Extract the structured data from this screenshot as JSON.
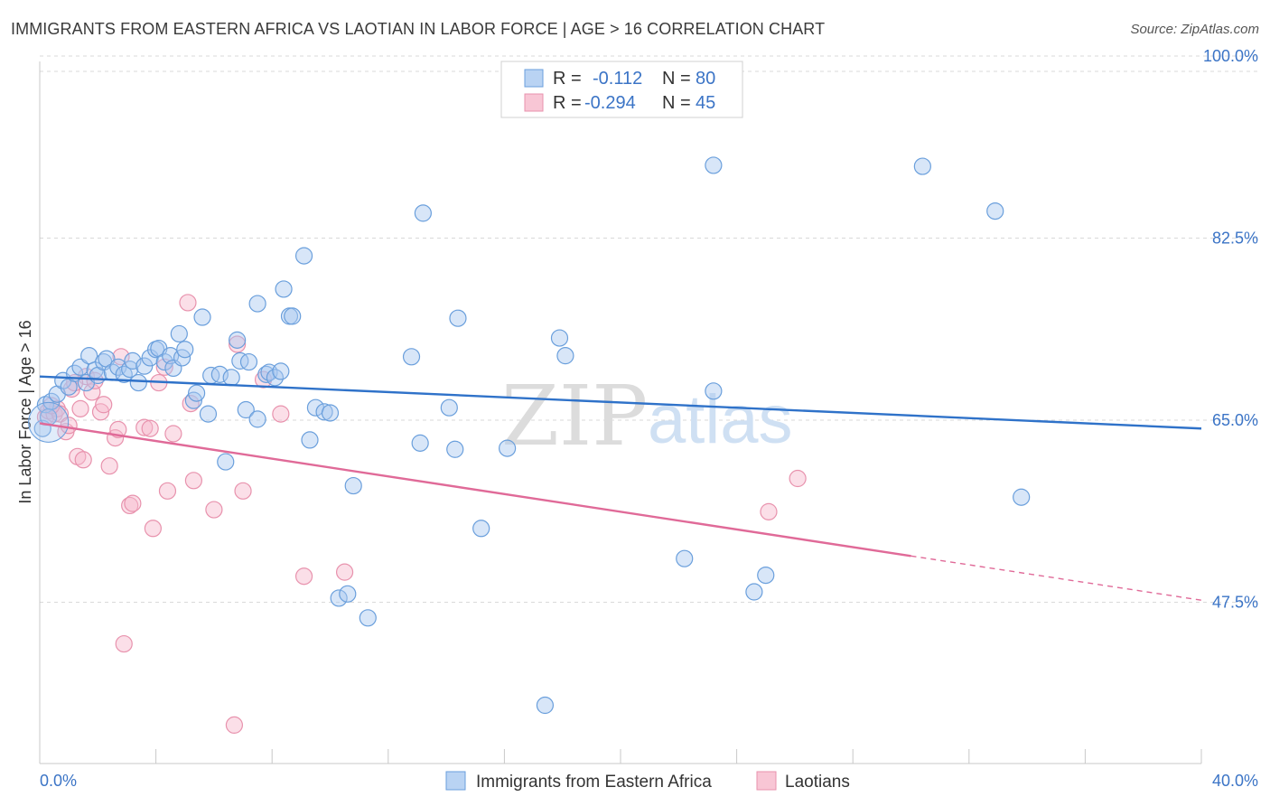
{
  "title": "IMMIGRANTS FROM EASTERN AFRICA VS LAOTIAN IN LABOR FORCE | AGE > 16 CORRELATION CHART",
  "source": "Source: ZipAtlas.com",
  "watermark": {
    "zip": "ZIP",
    "atlas": "atlas"
  },
  "colors": {
    "blue_fill": "#a9c8f0",
    "blue_stroke": "#6a9fdc",
    "blue_line": "#2f72c9",
    "pink_fill": "#f6b8cb",
    "pink_stroke": "#e892ad",
    "pink_line": "#e06a98",
    "tick_text": "#3b74c6",
    "grid": "#d9d9d9"
  },
  "legend": [
    {
      "r_label": "R =",
      "r_value": "-0.112",
      "n_label": "N =",
      "n_value": "80"
    },
    {
      "r_label": "R =",
      "r_value": "-0.294",
      "n_label": "N =",
      "n_value": "45"
    }
  ],
  "chart_data": {
    "type": "scatter",
    "xlabel": "",
    "ylabel": "In Labor Force | Age > 16",
    "xlim": [
      0,
      40
    ],
    "ylim": [
      32,
      102
    ],
    "x_tick_labels": [
      "0.0%",
      "40.0%"
    ],
    "y_ticks": [
      47.5,
      65.0,
      82.5,
      100.0
    ],
    "y_tick_labels": [
      "47.5%",
      "65.0%",
      "82.5%",
      "100.0%"
    ],
    "grid": true,
    "series": [
      {
        "name": "Immigrants from Eastern Africa",
        "color": "blue",
        "trend": {
          "x0": 0,
          "y0": 69.2,
          "x1": 40,
          "y1": 64.2,
          "solid_until": 40
        },
        "points": [
          [
            0.2,
            66.5
          ],
          [
            0.4,
            66.8
          ],
          [
            0.6,
            67.5
          ],
          [
            0.8,
            68.8
          ],
          [
            1.0,
            68.2
          ],
          [
            1.2,
            69.5
          ],
          [
            1.4,
            70.1
          ],
          [
            1.6,
            68.6
          ],
          [
            1.7,
            71.2
          ],
          [
            1.9,
            69.8
          ],
          [
            2.0,
            69.3
          ],
          [
            2.2,
            70.6
          ],
          [
            2.3,
            70.9
          ],
          [
            2.5,
            69.6
          ],
          [
            2.7,
            70.1
          ],
          [
            2.9,
            69.4
          ],
          [
            3.1,
            69.9
          ],
          [
            3.2,
            70.7
          ],
          [
            3.4,
            68.6
          ],
          [
            3.6,
            70.2
          ],
          [
            3.8,
            71.0
          ],
          [
            4.0,
            71.8
          ],
          [
            4.1,
            71.9
          ],
          [
            4.3,
            70.6
          ],
          [
            4.5,
            71.2
          ],
          [
            4.6,
            70.0
          ],
          [
            4.8,
            73.3
          ],
          [
            4.9,
            71.0
          ],
          [
            5.0,
            71.8
          ],
          [
            5.3,
            66.9
          ],
          [
            5.4,
            67.6
          ],
          [
            5.6,
            74.9
          ],
          [
            5.8,
            65.6
          ],
          [
            5.9,
            69.3
          ],
          [
            6.2,
            69.4
          ],
          [
            6.4,
            61.0
          ],
          [
            6.6,
            69.1
          ],
          [
            6.8,
            72.7
          ],
          [
            6.9,
            70.7
          ],
          [
            7.1,
            66.0
          ],
          [
            7.2,
            70.6
          ],
          [
            7.5,
            65.1
          ],
          [
            7.5,
            76.2
          ],
          [
            7.8,
            69.4
          ],
          [
            7.9,
            69.6
          ],
          [
            8.1,
            69.1
          ],
          [
            8.3,
            69.7
          ],
          [
            8.4,
            77.6
          ],
          [
            8.6,
            75.0
          ],
          [
            8.7,
            75.0
          ],
          [
            9.1,
            80.8
          ],
          [
            9.3,
            63.1
          ],
          [
            9.5,
            66.2
          ],
          [
            9.8,
            65.8
          ],
          [
            10.0,
            65.7
          ],
          [
            10.3,
            47.9
          ],
          [
            10.6,
            48.3
          ],
          [
            10.8,
            58.7
          ],
          [
            11.3,
            46.0
          ],
          [
            12.8,
            71.1
          ],
          [
            13.1,
            62.8
          ],
          [
            13.2,
            84.9
          ],
          [
            14.1,
            66.2
          ],
          [
            14.3,
            62.2
          ],
          [
            14.4,
            74.8
          ],
          [
            15.2,
            54.6
          ],
          [
            16.1,
            62.3
          ],
          [
            17.4,
            37.6
          ],
          [
            17.9,
            72.9
          ],
          [
            18.1,
            71.2
          ],
          [
            22.2,
            51.7
          ],
          [
            23.2,
            89.5
          ],
          [
            23.2,
            67.8
          ],
          [
            24.6,
            48.5
          ],
          [
            25.0,
            50.1
          ],
          [
            30.4,
            89.4
          ],
          [
            32.9,
            85.1
          ],
          [
            33.8,
            57.6
          ],
          [
            0.1,
            64.2
          ],
          [
            0.3,
            65.3
          ]
        ]
      },
      {
        "name": "Laotians",
        "color": "pink",
        "trend": {
          "x0": 0,
          "y0": 64.7,
          "x1": 40,
          "y1": 47.7,
          "solid_until": 30.0
        },
        "points": [
          [
            0.2,
            65.3
          ],
          [
            0.3,
            65.9
          ],
          [
            0.5,
            65.6
          ],
          [
            0.6,
            66.1
          ],
          [
            0.7,
            65.6
          ],
          [
            0.9,
            63.9
          ],
          [
            1.0,
            64.5
          ],
          [
            1.1,
            68.0
          ],
          [
            1.3,
            61.5
          ],
          [
            1.4,
            66.1
          ],
          [
            1.5,
            61.2
          ],
          [
            1.6,
            69.2
          ],
          [
            1.8,
            67.7
          ],
          [
            1.9,
            68.8
          ],
          [
            2.1,
            65.8
          ],
          [
            2.2,
            66.5
          ],
          [
            2.4,
            60.6
          ],
          [
            2.6,
            63.3
          ],
          [
            2.7,
            64.1
          ],
          [
            2.8,
            71.1
          ],
          [
            2.9,
            43.5
          ],
          [
            3.1,
            56.8
          ],
          [
            3.2,
            57.0
          ],
          [
            3.6,
            64.3
          ],
          [
            3.8,
            64.2
          ],
          [
            3.9,
            54.6
          ],
          [
            4.1,
            68.6
          ],
          [
            4.3,
            70.1
          ],
          [
            4.4,
            58.2
          ],
          [
            4.6,
            63.7
          ],
          [
            5.1,
            76.3
          ],
          [
            5.2,
            66.6
          ],
          [
            5.3,
            59.2
          ],
          [
            6.0,
            56.4
          ],
          [
            6.7,
            35.7
          ],
          [
            6.8,
            72.3
          ],
          [
            7.0,
            58.2
          ],
          [
            7.7,
            68.9
          ],
          [
            8.3,
            65.6
          ],
          [
            9.1,
            50.0
          ],
          [
            10.5,
            50.4
          ],
          [
            25.1,
            56.2
          ],
          [
            26.1,
            59.4
          ],
          [
            0.4,
            66.4
          ],
          [
            1.2,
            68.6
          ]
        ]
      }
    ]
  }
}
